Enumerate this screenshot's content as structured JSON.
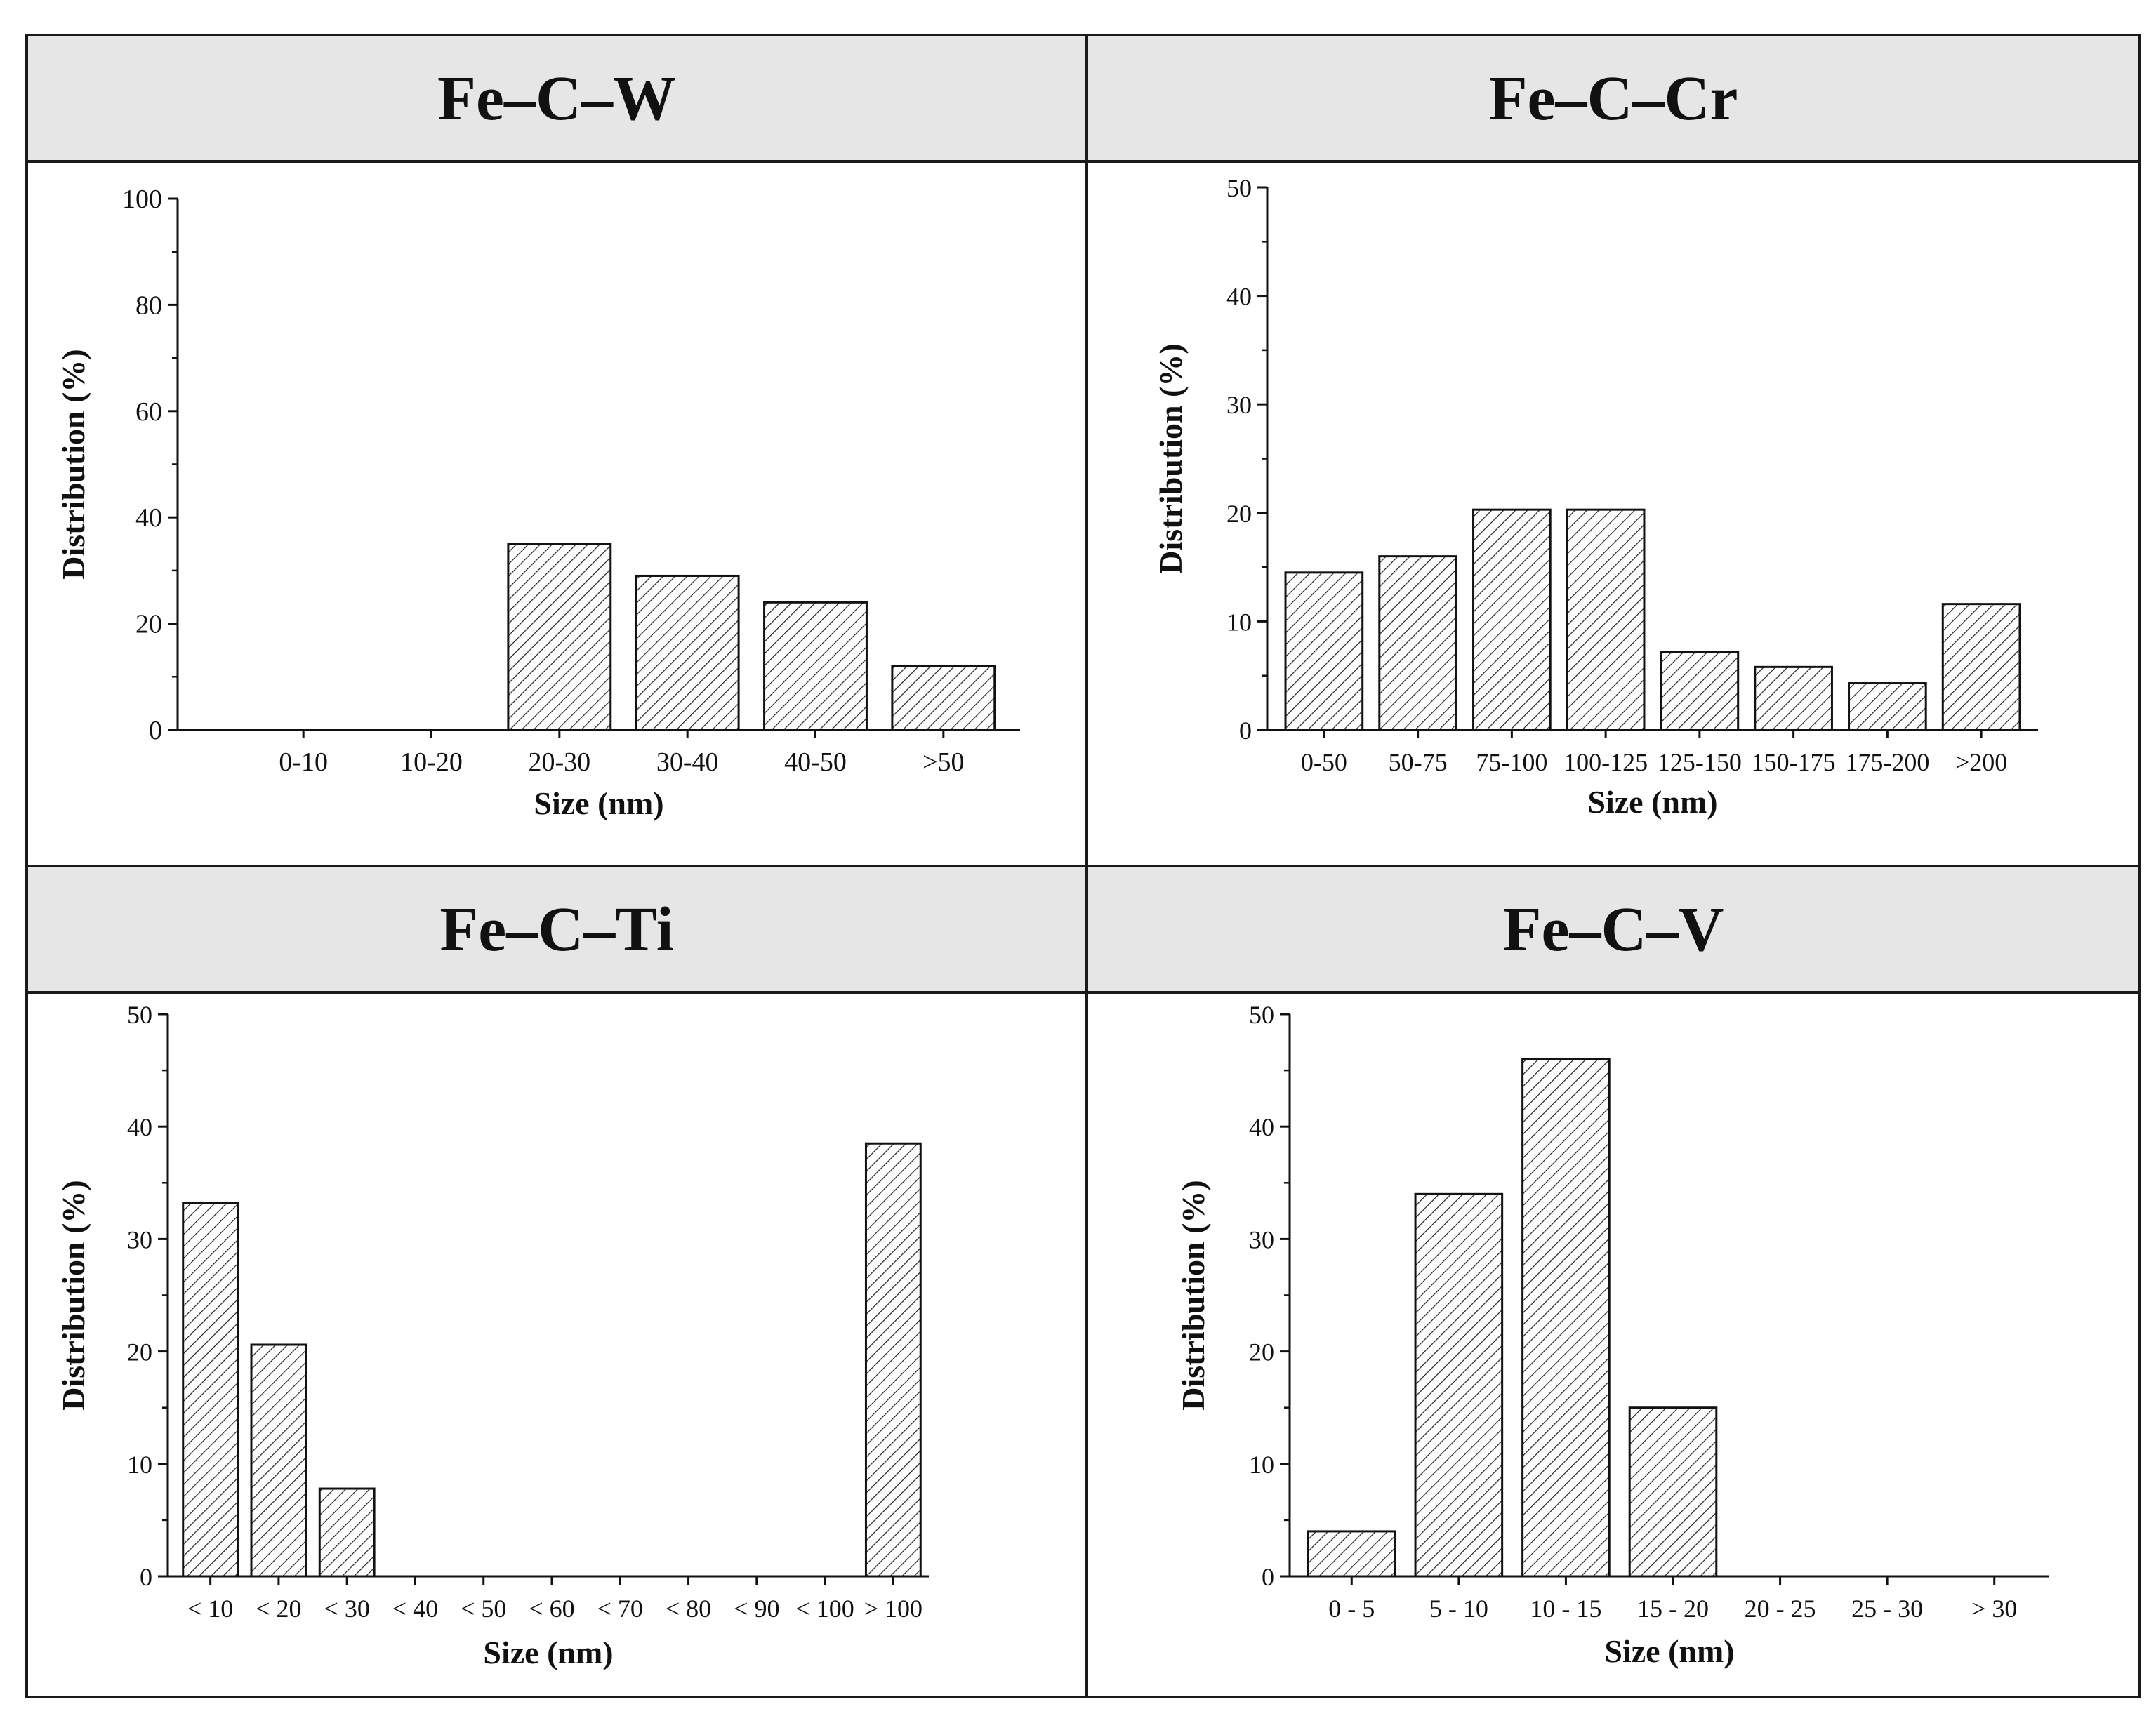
{
  "chart_data": [
    {
      "type": "bar",
      "title": "Fe–C–W",
      "xlabel": "Size (nm)",
      "ylabel": "Distribution (%)",
      "ylim": [
        0,
        100
      ],
      "yticks": [
        0,
        20,
        40,
        60,
        80,
        100
      ],
      "categories": [
        "0-10",
        "10-20",
        "20-30",
        "30-40",
        "40-50",
        ">50"
      ],
      "values": [
        0,
        0,
        35,
        29,
        24,
        12
      ]
    },
    {
      "type": "bar",
      "title": "Fe–C–Cr",
      "xlabel": "Size (nm)",
      "ylabel": "Distribution (%)",
      "ylim": [
        0,
        50
      ],
      "yticks": [
        0,
        10,
        20,
        30,
        40,
        50
      ],
      "categories": [
        "0-50",
        "50-75",
        "75-100",
        "100-125",
        "125-150",
        "150-175",
        "175-200",
        ">200"
      ],
      "values": [
        14.5,
        16,
        20.3,
        20.3,
        7.2,
        5.8,
        4.3,
        11.6
      ]
    },
    {
      "type": "bar",
      "title": "Fe–C–Ti",
      "xlabel": "Size (nm)",
      "ylabel": "Distribution (%)",
      "ylim": [
        0,
        50
      ],
      "yticks": [
        0,
        10,
        20,
        30,
        40,
        50
      ],
      "categories": [
        "< 10",
        "< 20",
        "< 30",
        "< 40",
        "< 50",
        "< 60",
        "< 70",
        "< 80",
        "< 90",
        "< 100",
        "> 100"
      ],
      "values": [
        33.2,
        20.6,
        7.8,
        0,
        0,
        0,
        0,
        0,
        0,
        0,
        38.5
      ]
    },
    {
      "type": "bar",
      "title": "Fe–C–V",
      "xlabel": "Size (nm)",
      "ylabel": "Distribution (%)",
      "ylim": [
        0,
        50
      ],
      "yticks": [
        0,
        10,
        20,
        30,
        40,
        50
      ],
      "categories": [
        "0 - 5",
        "5 - 10",
        "10 - 15",
        "15 - 20",
        "20 - 25",
        "25 - 30",
        "> 30"
      ],
      "values": [
        4,
        34,
        46,
        15,
        0,
        0,
        0
      ]
    }
  ]
}
